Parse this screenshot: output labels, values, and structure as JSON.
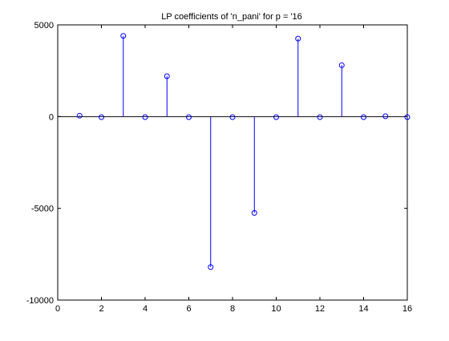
{
  "chart_data": {
    "type": "stem",
    "title": "LP coefficients of 'n_pani' for p = '16",
    "xlabel": "",
    "ylabel": "",
    "xlim": [
      0,
      16
    ],
    "ylim": [
      -10000,
      5000
    ],
    "x_ticks": [
      0,
      2,
      4,
      6,
      8,
      10,
      12,
      14,
      16
    ],
    "y_ticks": [
      -10000,
      -5000,
      0,
      5000
    ],
    "grid": false,
    "series": [
      {
        "x": [
          1,
          2,
          3,
          4,
          5,
          6,
          7,
          8,
          9,
          10,
          11,
          12,
          13,
          14,
          15,
          16
        ],
        "values": [
          50,
          -30,
          4400,
          -30,
          2200,
          -30,
          -8200,
          -30,
          -5250,
          -30,
          4250,
          -30,
          2800,
          -30,
          20,
          -30
        ]
      }
    ],
    "colors": {
      "stem": "#0000ff",
      "axes": "#000000",
      "background": "#ffffff"
    }
  }
}
